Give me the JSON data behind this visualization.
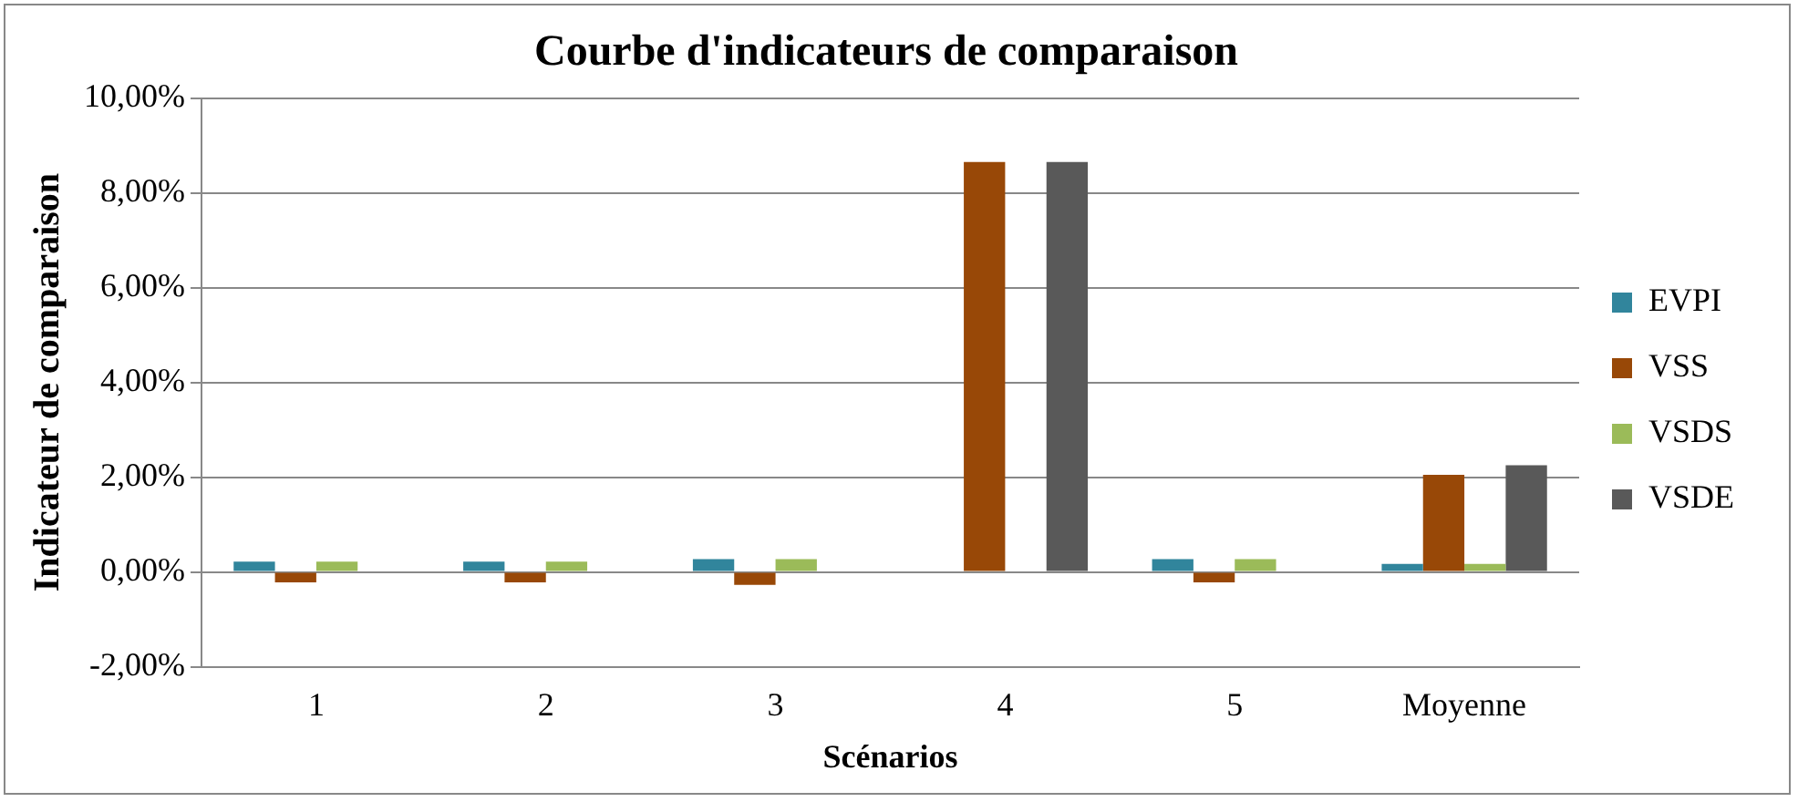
{
  "chart_data": {
    "type": "bar",
    "title": "Courbe d'indicateurs de comparaison",
    "xlabel": "Scénarios",
    "ylabel": "Indicateur de comparaison",
    "categories": [
      "1",
      "2",
      "3",
      "4",
      "5",
      "Moyenne"
    ],
    "series": [
      {
        "name": "EVPI",
        "color": "#31859c",
        "values": [
          0.22,
          0.22,
          0.27,
          0,
          0.27,
          0.17
        ]
      },
      {
        "name": "VSS",
        "color": "#984807",
        "values": [
          -0.22,
          -0.22,
          -0.27,
          8.65,
          -0.22,
          2.05
        ]
      },
      {
        "name": "VSDS",
        "color": "#9bbb59",
        "values": [
          0.22,
          0.22,
          0.27,
          0,
          0.27,
          0.17
        ]
      },
      {
        "name": "VSDE",
        "color": "#595959",
        "values": [
          0,
          0,
          0,
          8.65,
          0,
          2.25
        ]
      }
    ],
    "ylim": [
      -2,
      10
    ],
    "yticks": [
      {
        "value": -2,
        "label": "-2,00%"
      },
      {
        "value": 0,
        "label": "0,00%"
      },
      {
        "value": 2,
        "label": "2,00%"
      },
      {
        "value": 4,
        "label": "4,00%"
      },
      {
        "value": 6,
        "label": "6,00%"
      },
      {
        "value": 8,
        "label": "8,00%"
      },
      {
        "value": 10,
        "label": "10,00%"
      }
    ],
    "grid": "y",
    "legend": "right"
  }
}
